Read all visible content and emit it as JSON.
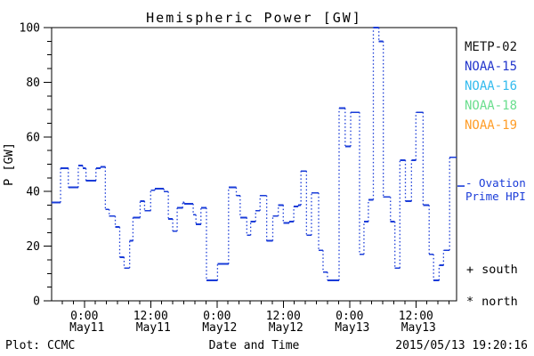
{
  "chart_data": {
    "type": "step-line",
    "title": "Hemispheric Power [GW]",
    "xlabel": "Date and Time",
    "ylabel": "P [GW]",
    "ylim": [
      0,
      100
    ],
    "y_major_ticks": [
      0,
      20,
      40,
      60,
      80,
      100
    ],
    "y_minor_step": 5,
    "x_range_hours": [
      -5.92,
      67.36
    ],
    "x_minor_step_hours": 2,
    "x_major_ticks": [
      {
        "t": 0,
        "time": "0:00",
        "date": "May11"
      },
      {
        "t": 12,
        "time": "12:00",
        "date": "May11"
      },
      {
        "t": 24,
        "time": "0:00",
        "date": "May12"
      },
      {
        "t": 36,
        "time": "12:00",
        "date": "May12"
      },
      {
        "t": 48,
        "time": "0:00",
        "date": "May13"
      },
      {
        "t": 60,
        "time": "12:00",
        "date": "May13"
      }
    ],
    "series": [
      {
        "name": "NOAA-15",
        "color": "#1a3cd8",
        "unit": "GW",
        "steps": [
          [
            -5.9,
            36
          ],
          [
            -4.3,
            48.5
          ],
          [
            -2.9,
            41.5
          ],
          [
            -1.1,
            49.5
          ],
          [
            -0.3,
            48.5
          ],
          [
            0.3,
            44
          ],
          [
            2.1,
            48.5
          ],
          [
            2.9,
            49
          ],
          [
            3.8,
            33.5
          ],
          [
            4.5,
            31
          ],
          [
            5.6,
            27
          ],
          [
            6.4,
            16
          ],
          [
            7.2,
            12
          ],
          [
            8.2,
            22
          ],
          [
            8.8,
            30.5
          ],
          [
            10.1,
            36.5
          ],
          [
            10.9,
            33
          ],
          [
            12.0,
            40.5
          ],
          [
            12.8,
            41
          ],
          [
            14.4,
            40
          ],
          [
            15.2,
            30
          ],
          [
            16.0,
            25.5
          ],
          [
            16.8,
            34
          ],
          [
            17.8,
            36
          ],
          [
            18.1,
            35.5
          ],
          [
            19.7,
            31.5
          ],
          [
            20.2,
            28
          ],
          [
            21.1,
            34
          ],
          [
            22.1,
            7.5
          ],
          [
            24.1,
            13.5
          ],
          [
            26.1,
            41.5
          ],
          [
            27.5,
            38.5
          ],
          [
            28.2,
            30.5
          ],
          [
            29.4,
            24
          ],
          [
            30.1,
            29
          ],
          [
            31.0,
            33
          ],
          [
            31.8,
            38.5
          ],
          [
            33.0,
            22
          ],
          [
            34.1,
            31
          ],
          [
            35.1,
            35
          ],
          [
            36.0,
            28.5
          ],
          [
            37.1,
            29
          ],
          [
            37.9,
            34.5
          ],
          [
            38.7,
            35
          ],
          [
            39.2,
            47.5
          ],
          [
            40.2,
            24
          ],
          [
            41.1,
            39.5
          ],
          [
            42.4,
            18.5
          ],
          [
            43.2,
            10.5
          ],
          [
            44.0,
            7.5
          ],
          [
            46.1,
            70.5
          ],
          [
            47.2,
            56.5
          ],
          [
            48.2,
            69
          ],
          [
            49.8,
            17
          ],
          [
            50.6,
            29
          ],
          [
            51.4,
            37
          ],
          [
            52.3,
            100
          ],
          [
            53.3,
            95
          ],
          [
            54.1,
            38
          ],
          [
            55.4,
            29
          ],
          [
            56.2,
            12
          ],
          [
            57.1,
            51.5
          ],
          [
            58.1,
            36.5
          ],
          [
            59.2,
            51.5
          ],
          [
            60.0,
            69
          ],
          [
            61.3,
            35
          ],
          [
            62.4,
            17
          ],
          [
            63.2,
            7.5
          ],
          [
            64.2,
            13
          ],
          [
            65.0,
            18.5
          ],
          [
            66.1,
            52.5
          ]
        ]
      }
    ],
    "legend": [
      {
        "label": "METP-02",
        "color": "#111111"
      },
      {
        "label": "NOAA-15",
        "color": "#2236cc"
      },
      {
        "label": "NOAA-16",
        "color": "#33bbee"
      },
      {
        "label": "NOAA-18",
        "color": "#6ade8e"
      },
      {
        "label": "NOAA-19",
        "color": "#ff9d28"
      }
    ],
    "ovation_marker": {
      "label_line1": "- Ovation",
      "label_line2": "Prime HPI",
      "value_gw": 42,
      "color": "#1a3cd8"
    },
    "hemisphere_markers": [
      {
        "symbol": "+",
        "label": "south"
      },
      {
        "symbol": "*",
        "label": "north"
      }
    ]
  },
  "footer": {
    "left": "Plot: CCMC",
    "right": "2015/05/13 19:20:16"
  }
}
